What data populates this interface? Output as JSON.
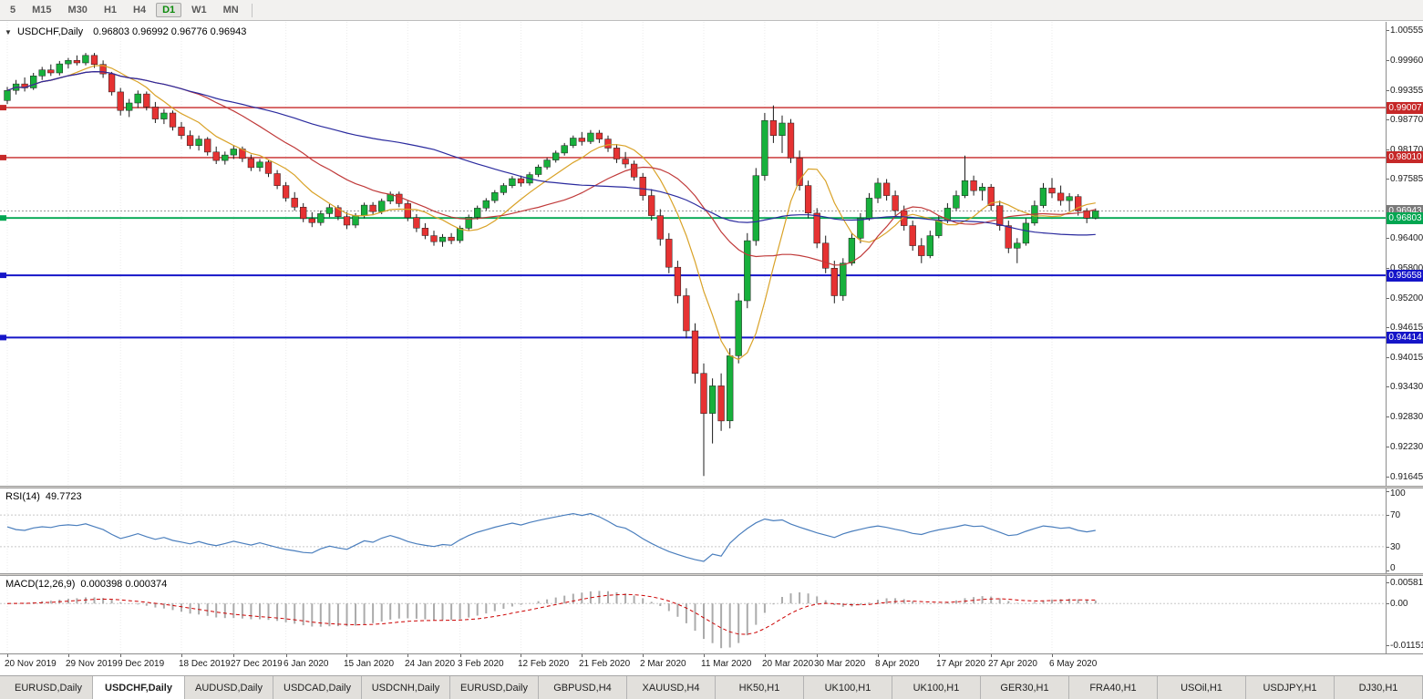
{
  "toolbar": {
    "timeframes": [
      {
        "label": "5",
        "selected": false
      },
      {
        "label": "M15",
        "selected": false
      },
      {
        "label": "M30",
        "selected": false
      },
      {
        "label": "H1",
        "selected": false
      },
      {
        "label": "H4",
        "selected": false
      },
      {
        "label": "D1",
        "selected": true
      },
      {
        "label": "W1",
        "selected": false
      },
      {
        "label": "MN",
        "selected": false
      }
    ]
  },
  "chart": {
    "title_symbol": "USDCHF,Daily",
    "title_ohlc": "0.96803 0.96992 0.96776 0.96943",
    "price_axis_labels": [
      "1.00555",
      "0.99960",
      "0.99355",
      "0.98770",
      "0.98170",
      "0.97585",
      "0.96985",
      "0.96400",
      "0.95800",
      "0.95200",
      "0.94615",
      "0.94015",
      "0.93430",
      "0.92830",
      "0.92230",
      "0.91645"
    ],
    "hlines": [
      {
        "price": 0.99007,
        "label": "0.99007",
        "color": "#C62828",
        "width": 1.4
      },
      {
        "price": 0.9801,
        "label": "0.98010",
        "color": "#C62828",
        "width": 1.4
      },
      {
        "price": 0.95658,
        "label": "0.95658",
        "color": "#1515C8",
        "width": 2
      },
      {
        "price": 0.94414,
        "label": "0.94414",
        "color": "#1515C8",
        "width": 2
      }
    ],
    "bid_line": {
      "price": 0.96803,
      "label": "0.96803",
      "color": "#00A651"
    },
    "last_price": {
      "price": 0.96943,
      "label": "0.96943",
      "color": "#7A7A7A"
    }
  },
  "chart_data": {
    "type": "candlestick",
    "symbol": "USDCHF",
    "timeframe": "Daily",
    "title": "USDCHF,Daily",
    "price_range": [
      0.91455,
      1.0072
    ],
    "up_color": "#17B03C",
    "down_color": "#E63232",
    "x_labels": [
      "20 Nov 2019",
      "29 Nov 2019",
      "9 Dec 2019",
      "18 Dec 2019",
      "27 Dec 2019",
      "6 Jan 2020",
      "15 Jan 2020",
      "24 Jan 2020",
      "3 Feb 2020",
      "12 Feb 2020",
      "21 Feb 2020",
      "2 Mar 2020",
      "11 Mar 2020",
      "20 Mar 2020",
      "30 Mar 2020",
      "8 Apr 2020",
      "17 Apr 2020",
      "27 Apr 2020",
      "6 May 2020"
    ],
    "x_label_candle_indices": [
      0,
      7,
      13,
      20,
      26,
      32,
      39,
      46,
      52,
      59,
      66,
      73,
      80,
      87,
      93,
      100,
      107,
      113,
      120
    ],
    "moving_averages": [
      {
        "period": 8,
        "color": "#D9A227"
      },
      {
        "period": 20,
        "color": "#C03A3A"
      },
      {
        "period": 50,
        "color": "#2A2A9E"
      }
    ],
    "candles": [
      [
        0.9915,
        0.9942,
        0.9908,
        0.9935
      ],
      [
        0.9935,
        0.9956,
        0.9927,
        0.9948
      ],
      [
        0.9948,
        0.9961,
        0.9933,
        0.994
      ],
      [
        0.994,
        0.997,
        0.9936,
        0.9964
      ],
      [
        0.9964,
        0.9982,
        0.9956,
        0.9976
      ],
      [
        0.9976,
        0.9987,
        0.9964,
        0.997
      ],
      [
        0.997,
        0.9994,
        0.9965,
        0.9988
      ],
      [
        0.9988,
        1.0,
        0.9979,
        0.9995
      ],
      [
        0.9995,
        1.0005,
        0.9985,
        0.999
      ],
      [
        0.999,
        1.001,
        0.9985,
        1.0005
      ],
      [
        1.0005,
        1.001,
        0.998,
        0.9987
      ],
      [
        0.9987,
        0.9995,
        0.996,
        0.9968
      ],
      [
        0.9968,
        0.9972,
        0.9925,
        0.9932
      ],
      [
        0.9932,
        0.994,
        0.9885,
        0.9895
      ],
      [
        0.9895,
        0.9918,
        0.9882,
        0.991
      ],
      [
        0.991,
        0.9935,
        0.99,
        0.9928
      ],
      [
        0.9928,
        0.9933,
        0.9895,
        0.9902
      ],
      [
        0.9902,
        0.9912,
        0.987,
        0.9878
      ],
      [
        0.9878,
        0.9898,
        0.9868,
        0.989
      ],
      [
        0.989,
        0.9895,
        0.9855,
        0.9862
      ],
      [
        0.9862,
        0.9872,
        0.9838,
        0.9845
      ],
      [
        0.9845,
        0.9855,
        0.9818,
        0.9825
      ],
      [
        0.9825,
        0.9845,
        0.9815,
        0.9838
      ],
      [
        0.9838,
        0.9842,
        0.9805,
        0.9812
      ],
      [
        0.9812,
        0.9823,
        0.9788,
        0.9795
      ],
      [
        0.9795,
        0.9813,
        0.9787,
        0.9806
      ],
      [
        0.9806,
        0.9825,
        0.9798,
        0.9818
      ],
      [
        0.9818,
        0.9823,
        0.9792,
        0.9799
      ],
      [
        0.9799,
        0.9807,
        0.9774,
        0.9781
      ],
      [
        0.9781,
        0.9798,
        0.9773,
        0.9792
      ],
      [
        0.9792,
        0.9796,
        0.9762,
        0.9769
      ],
      [
        0.9769,
        0.9776,
        0.9738,
        0.9745
      ],
      [
        0.9745,
        0.9752,
        0.9713,
        0.972
      ],
      [
        0.972,
        0.9732,
        0.9695,
        0.9702
      ],
      [
        0.9702,
        0.971,
        0.9672,
        0.9679
      ],
      [
        0.9679,
        0.9692,
        0.9662,
        0.9671
      ],
      [
        0.9671,
        0.9695,
        0.9665,
        0.9689
      ],
      [
        0.9689,
        0.9708,
        0.9682,
        0.9701
      ],
      [
        0.9701,
        0.9706,
        0.9676,
        0.9683
      ],
      [
        0.9683,
        0.9692,
        0.9658,
        0.9666
      ],
      [
        0.9666,
        0.969,
        0.966,
        0.9685
      ],
      [
        0.9685,
        0.9711,
        0.968,
        0.9706
      ],
      [
        0.9706,
        0.9712,
        0.9686,
        0.9693
      ],
      [
        0.9693,
        0.9719,
        0.9688,
        0.9714
      ],
      [
        0.9714,
        0.9733,
        0.9708,
        0.9728
      ],
      [
        0.9728,
        0.9733,
        0.9702,
        0.9709
      ],
      [
        0.9709,
        0.9715,
        0.9674,
        0.9681
      ],
      [
        0.9681,
        0.9688,
        0.9652,
        0.966
      ],
      [
        0.966,
        0.967,
        0.9638,
        0.9645
      ],
      [
        0.9645,
        0.9655,
        0.9625,
        0.9633
      ],
      [
        0.9633,
        0.9648,
        0.9623,
        0.9642
      ],
      [
        0.9642,
        0.965,
        0.9628,
        0.9635
      ],
      [
        0.9635,
        0.9665,
        0.963,
        0.966
      ],
      [
        0.966,
        0.9687,
        0.9655,
        0.9682
      ],
      [
        0.9682,
        0.9705,
        0.9677,
        0.97
      ],
      [
        0.97,
        0.972,
        0.9695,
        0.9715
      ],
      [
        0.9715,
        0.9736,
        0.971,
        0.9731
      ],
      [
        0.9731,
        0.975,
        0.9726,
        0.9745
      ],
      [
        0.9745,
        0.9764,
        0.974,
        0.9759
      ],
      [
        0.9759,
        0.9765,
        0.9743,
        0.975
      ],
      [
        0.975,
        0.9772,
        0.9745,
        0.9767
      ],
      [
        0.9767,
        0.9787,
        0.9762,
        0.9782
      ],
      [
        0.9782,
        0.9801,
        0.9777,
        0.9796
      ],
      [
        0.9796,
        0.9815,
        0.9791,
        0.981
      ],
      [
        0.981,
        0.983,
        0.9805,
        0.9825
      ],
      [
        0.9825,
        0.9845,
        0.982,
        0.984
      ],
      [
        0.984,
        0.9852,
        0.9825,
        0.9833
      ],
      [
        0.9833,
        0.9856,
        0.9828,
        0.985
      ],
      [
        0.985,
        0.9856,
        0.983,
        0.9838
      ],
      [
        0.9838,
        0.9845,
        0.9812,
        0.982
      ],
      [
        0.982,
        0.9828,
        0.979,
        0.9798
      ],
      [
        0.9798,
        0.9812,
        0.978,
        0.9788
      ],
      [
        0.9788,
        0.9795,
        0.9755,
        0.9762
      ],
      [
        0.9762,
        0.977,
        0.9715,
        0.9725
      ],
      [
        0.9725,
        0.9738,
        0.9675,
        0.9685
      ],
      [
        0.9685,
        0.9698,
        0.9625,
        0.9638
      ],
      [
        0.9638,
        0.965,
        0.957,
        0.9582
      ],
      [
        0.9582,
        0.9595,
        0.951,
        0.9525
      ],
      [
        0.9525,
        0.954,
        0.944,
        0.9455
      ],
      [
        0.9455,
        0.947,
        0.935,
        0.937
      ],
      [
        0.937,
        0.939,
        0.9165,
        0.929
      ],
      [
        0.929,
        0.936,
        0.923,
        0.9345
      ],
      [
        0.9345,
        0.937,
        0.9255,
        0.9275
      ],
      [
        0.9275,
        0.942,
        0.926,
        0.9405
      ],
      [
        0.9405,
        0.953,
        0.939,
        0.9515
      ],
      [
        0.9515,
        0.965,
        0.95,
        0.9635
      ],
      [
        0.9635,
        0.978,
        0.9625,
        0.9765
      ],
      [
        0.9765,
        0.989,
        0.9755,
        0.9875
      ],
      [
        0.9875,
        0.9905,
        0.983,
        0.9845
      ],
      [
        0.9845,
        0.9885,
        0.981,
        0.987
      ],
      [
        0.987,
        0.9878,
        0.979,
        0.98
      ],
      [
        0.98,
        0.9815,
        0.9735,
        0.9745
      ],
      [
        0.9745,
        0.9755,
        0.968,
        0.969
      ],
      [
        0.969,
        0.97,
        0.962,
        0.963
      ],
      [
        0.963,
        0.9645,
        0.957,
        0.958
      ],
      [
        0.958,
        0.9595,
        0.951,
        0.9525
      ],
      [
        0.9525,
        0.96,
        0.9515,
        0.959
      ],
      [
        0.959,
        0.965,
        0.9585,
        0.964
      ],
      [
        0.964,
        0.969,
        0.963,
        0.968
      ],
      [
        0.968,
        0.973,
        0.9675,
        0.972
      ],
      [
        0.972,
        0.976,
        0.971,
        0.975
      ],
      [
        0.975,
        0.9758,
        0.9715,
        0.9725
      ],
      [
        0.9725,
        0.9735,
        0.9685,
        0.9695
      ],
      [
        0.9695,
        0.9705,
        0.9655,
        0.9665
      ],
      [
        0.9665,
        0.9675,
        0.9615,
        0.9625
      ],
      [
        0.9625,
        0.964,
        0.959,
        0.9605
      ],
      [
        0.9605,
        0.9655,
        0.96,
        0.9645
      ],
      [
        0.9645,
        0.9685,
        0.964,
        0.9675
      ],
      [
        0.9675,
        0.971,
        0.967,
        0.97
      ],
      [
        0.97,
        0.9735,
        0.9695,
        0.9725
      ],
      [
        0.9725,
        0.9805,
        0.972,
        0.9755
      ],
      [
        0.9755,
        0.9765,
        0.9725,
        0.9735
      ],
      [
        0.9735,
        0.975,
        0.9715,
        0.9742
      ],
      [
        0.9742,
        0.9748,
        0.9695,
        0.9705
      ],
      [
        0.9705,
        0.9715,
        0.9655,
        0.9665
      ],
      [
        0.9665,
        0.9675,
        0.961,
        0.962
      ],
      [
        0.962,
        0.964,
        0.959,
        0.963
      ],
      [
        0.963,
        0.968,
        0.9625,
        0.967
      ],
      [
        0.967,
        0.9715,
        0.9665,
        0.9705
      ],
      [
        0.9705,
        0.975,
        0.97,
        0.974
      ],
      [
        0.974,
        0.976,
        0.972,
        0.973
      ],
      [
        0.973,
        0.9745,
        0.9705,
        0.9715
      ],
      [
        0.9715,
        0.973,
        0.9695,
        0.9723
      ],
      [
        0.9723,
        0.9728,
        0.9685,
        0.9695
      ],
      [
        0.9695,
        0.97,
        0.967,
        0.968
      ],
      [
        0.96803,
        0.96992,
        0.96776,
        0.96943
      ]
    ]
  },
  "rsi": {
    "label": "RSI(14)",
    "value": "49.7723",
    "period": 14,
    "levels": [
      70,
      30
    ],
    "axis_labels": [
      "100",
      "70",
      "30",
      "0"
    ],
    "line_color": "#4A7EBD"
  },
  "macd": {
    "label": "MACD(12,26,9)",
    "values": "0.000398 0.000374",
    "fast": 12,
    "slow": 26,
    "signal": 9,
    "axis_labels": [
      "0.005818",
      "0.00",
      "-0.011514"
    ],
    "axis_values": [
      0.005818,
      0.0,
      -0.011514
    ],
    "histogram_color": "#ABABAB",
    "signal_color": "#CC0000"
  },
  "time_axis": {
    "labels": [
      "20 Nov 2019",
      "29 Nov 2019",
      "9 Dec 2019",
      "18 Dec 2019",
      "27 Dec 2019",
      "6 Jan 2020",
      "15 Jan 2020",
      "24 Jan 2020",
      "3 Feb 2020",
      "12 Feb 2020",
      "21 Feb 2020",
      "2 Mar 2020",
      "11 Mar 2020",
      "20 Mar 2020",
      "30 Mar 2020",
      "8 Apr 2020",
      "17 Apr 2020",
      "27 Apr 2020",
      "6 May 2020"
    ]
  },
  "tabs": [
    {
      "label": "EURUSD,Daily",
      "active": false
    },
    {
      "label": "USDCHF,Daily",
      "active": true
    },
    {
      "label": "AUDUSD,Daily",
      "active": false
    },
    {
      "label": "USDCAD,Daily",
      "active": false
    },
    {
      "label": "USDCNH,Daily",
      "active": false
    },
    {
      "label": "EURUSD,Daily",
      "active": false
    },
    {
      "label": "GBPUSD,H4",
      "active": false
    },
    {
      "label": "XAUUSD,H4",
      "active": false
    },
    {
      "label": "HK50,H1",
      "active": false
    },
    {
      "label": "UK100,H1",
      "active": false
    },
    {
      "label": "UK100,H1",
      "active": false
    },
    {
      "label": "GER30,H1",
      "active": false
    },
    {
      "label": "FRA40,H1",
      "active": false
    },
    {
      "label": "USOil,H1",
      "active": false
    },
    {
      "label": "USDJPY,H1",
      "active": false
    },
    {
      "label": "DJ30,H1",
      "active": false
    }
  ]
}
